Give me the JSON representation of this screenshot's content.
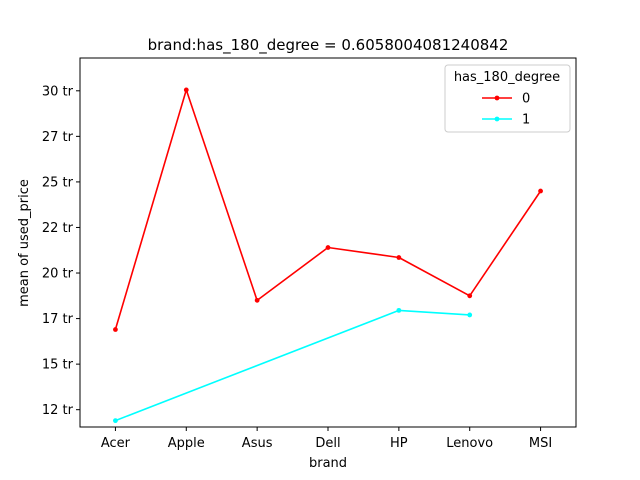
{
  "chart_data": {
    "type": "line",
    "title": "brand:has_180_degree = 0.6058004081240842",
    "xlabel": "brand",
    "ylabel": "mean of used_price",
    "categories": [
      "Acer",
      "Apple",
      "Asus",
      "Dell",
      "HP",
      "Lenovo",
      "MSI"
    ],
    "y_ticks": [
      12,
      14.5,
      17,
      19.5,
      22,
      24.5,
      27,
      29.5
    ],
    "y_tick_labels": [
      "12 tr",
      "15 tr",
      "17 tr",
      "20 tr",
      "22 tr",
      "25 tr",
      "27 tr",
      "30 tr"
    ],
    "ylim": [
      11.05,
      31.3
    ],
    "legend_title": "has_180_degree",
    "legend_position": "top-right",
    "grid": false,
    "series": [
      {
        "name": "0",
        "color": "#ff0000",
        "values": [
          16.4,
          29.55,
          18.0,
          20.9,
          20.35,
          18.25,
          24.0
        ]
      },
      {
        "name": "1",
        "color": "#00ffff",
        "values": [
          11.4,
          null,
          null,
          null,
          17.45,
          17.2,
          null
        ]
      }
    ]
  }
}
